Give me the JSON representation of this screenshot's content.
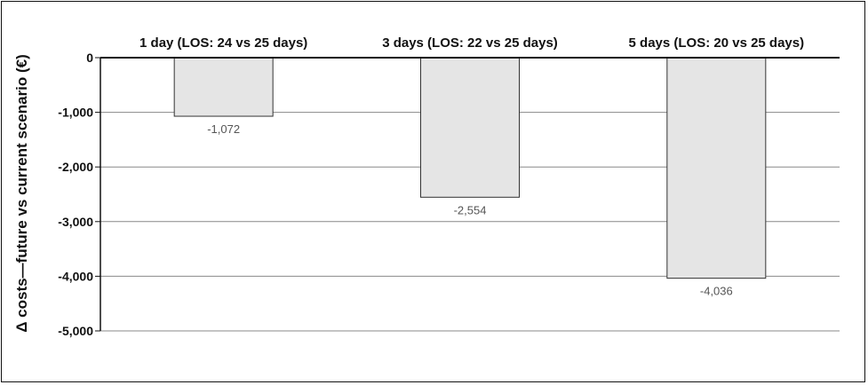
{
  "chart_data": {
    "type": "bar",
    "categories": [
      "1 day (LOS: 24 vs 25 days)",
      "3 days (LOS: 22 vs 25 days)",
      "5 days (LOS: 20 vs 25 days)"
    ],
    "values": [
      -1072,
      -2554,
      -4036
    ],
    "value_labels": [
      "-1,072",
      "-2,554",
      "-4,036"
    ],
    "title": "",
    "xlabel": "",
    "ylabel": "Δ costs—future vs current scenario (€)",
    "ylim": [
      -5000,
      0
    ],
    "yticks": [
      0,
      -1000,
      -2000,
      -3000,
      -4000,
      -5000
    ],
    "ytick_labels": [
      "0",
      "-1,000",
      "-2,000",
      "-3,000",
      "-4,000",
      "-5,000"
    ],
    "category_label_position": "top",
    "grid": true,
    "legend": false,
    "colors": {
      "bar_fill": "#e5e5e5",
      "bar_stroke": "#333333",
      "grid": "#888888",
      "axis": "#111111"
    }
  }
}
